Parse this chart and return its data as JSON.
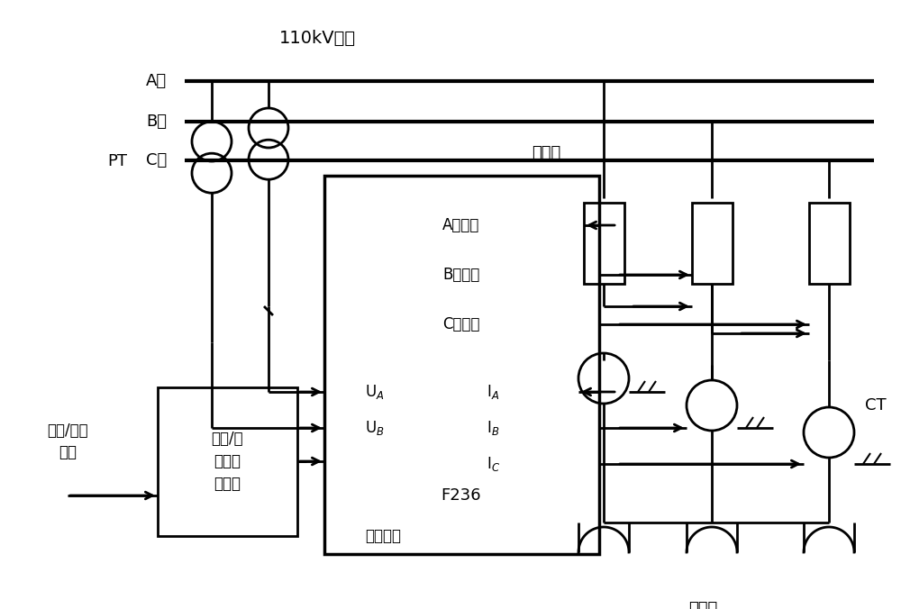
{
  "bg_color": "#ffffff",
  "bus_label": "110kV母线",
  "phase_A": "A相",
  "phase_B": "B相",
  "phase_C": "C相",
  "pt_label": "PT",
  "breaker_label": "断路器",
  "ct_label": "CT",
  "reactor_label": "电抗器",
  "f236_label": "F236",
  "label_A_open": "A相分闸",
  "label_B_open": "B相分闸",
  "label_C_open": "C相分闸",
  "cmd_label": "分闸命令",
  "switch_label": "同期/非\n同期切\n换选择",
  "jump_label": "手跳/遥跳\n命令"
}
